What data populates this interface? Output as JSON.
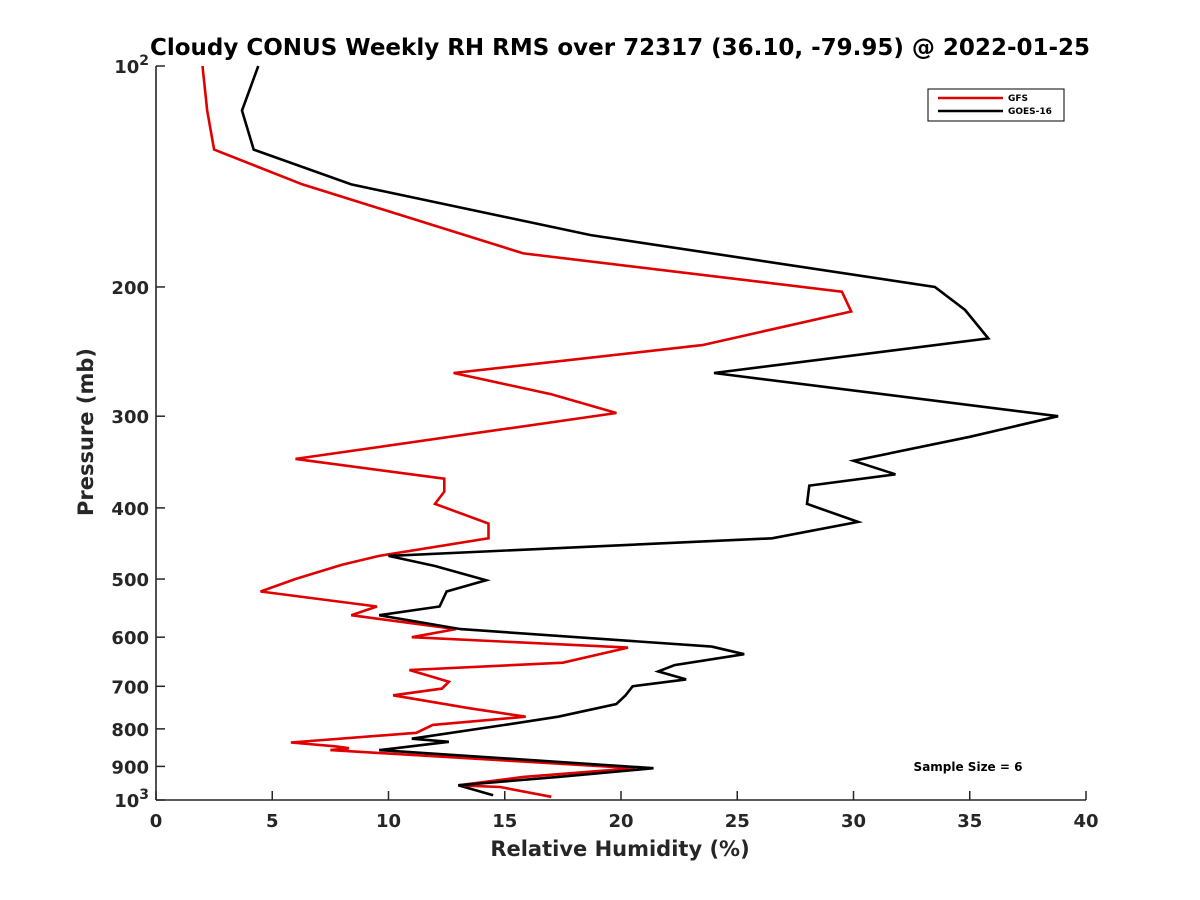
{
  "chart_data": {
    "type": "line",
    "title": "Cloudy CONUS Weekly RH RMS over 72317 (36.10, -79.95) @ 2022-01-25",
    "xlabel": "Relative Humidity (%)",
    "ylabel": "Pressure (mb)",
    "xlim": [
      0,
      40
    ],
    "ylim": [
      100,
      1000
    ],
    "y_scale": "log",
    "y_reversed": true,
    "x_ticks": [
      0,
      5,
      10,
      15,
      20,
      25,
      30,
      35,
      40
    ],
    "x_tick_labels": [
      "0",
      "5",
      "10",
      "15",
      "20",
      "25",
      "30",
      "35",
      "40"
    ],
    "y_ticks": [
      100,
      200,
      300,
      400,
      500,
      600,
      700,
      800,
      900,
      1000
    ],
    "y_tick_labels": [
      "10²",
      "200",
      "300",
      "400",
      "500",
      "600",
      "700",
      "800",
      "900",
      "10³"
    ],
    "grid": false,
    "legend_position": "top-right",
    "annotation": "Sample Size = 6",
    "series": [
      {
        "name": "GFS",
        "color": "#e00000",
        "points": [
          [
            2.0,
            100
          ],
          [
            2.2,
            115
          ],
          [
            2.5,
            130
          ],
          [
            6.3,
            145
          ],
          [
            15.8,
            180
          ],
          [
            29.5,
            203
          ],
          [
            29.9,
            216
          ],
          [
            23.5,
            240
          ],
          [
            12.8,
            262
          ],
          [
            17.0,
            280
          ],
          [
            19.8,
            297
          ],
          [
            6.0,
            343
          ],
          [
            12.4,
            365
          ],
          [
            12.4,
            380
          ],
          [
            12.0,
            395
          ],
          [
            14.3,
            420
          ],
          [
            14.3,
            440
          ],
          [
            9.6,
            465
          ],
          [
            8.0,
            478
          ],
          [
            6.0,
            500
          ],
          [
            4.5,
            520
          ],
          [
            9.5,
            545
          ],
          [
            8.4,
            560
          ],
          [
            12.9,
            585
          ],
          [
            11.0,
            600
          ],
          [
            20.3,
            620
          ],
          [
            17.5,
            650
          ],
          [
            10.9,
            665
          ],
          [
            12.6,
            690
          ],
          [
            12.3,
            705
          ],
          [
            10.2,
            720
          ],
          [
            13.5,
            750
          ],
          [
            15.9,
            770
          ],
          [
            11.9,
            790
          ],
          [
            11.2,
            810
          ],
          [
            5.8,
            835
          ],
          [
            7.7,
            845
          ],
          [
            8.3,
            850
          ],
          [
            7.5,
            855
          ],
          [
            20.6,
            905
          ],
          [
            15.8,
            930
          ],
          [
            13.0,
            955
          ],
          [
            14.8,
            960
          ],
          [
            17.0,
            990
          ]
        ]
      },
      {
        "name": "GOES-16",
        "color": "#000000",
        "points": [
          [
            4.4,
            100
          ],
          [
            3.7,
            115
          ],
          [
            4.2,
            130
          ],
          [
            8.4,
            145
          ],
          [
            18.7,
            170
          ],
          [
            33.5,
            200
          ],
          [
            34.8,
            215
          ],
          [
            35.8,
            235
          ],
          [
            24.0,
            262
          ],
          [
            38.8,
            300
          ],
          [
            35.0,
            320
          ],
          [
            30.0,
            345
          ],
          [
            31.8,
            360
          ],
          [
            28.1,
            373
          ],
          [
            28.0,
            395
          ],
          [
            30.2,
            418
          ],
          [
            26.5,
            440
          ],
          [
            10.0,
            465
          ],
          [
            12.0,
            480
          ],
          [
            14.2,
            502
          ],
          [
            12.5,
            520
          ],
          [
            12.2,
            545
          ],
          [
            9.6,
            560
          ],
          [
            13.1,
            585
          ],
          [
            23.9,
            618
          ],
          [
            25.3,
            633
          ],
          [
            22.3,
            655
          ],
          [
            21.6,
            668
          ],
          [
            22.8,
            685
          ],
          [
            20.5,
            700
          ],
          [
            20.2,
            720
          ],
          [
            19.8,
            740
          ],
          [
            17.3,
            770
          ],
          [
            15.0,
            790
          ],
          [
            11.0,
            825
          ],
          [
            12.6,
            833
          ],
          [
            9.6,
            855
          ],
          [
            21.4,
            905
          ],
          [
            17.3,
            930
          ],
          [
            13.0,
            955
          ],
          [
            14.5,
            985
          ]
        ]
      }
    ]
  }
}
